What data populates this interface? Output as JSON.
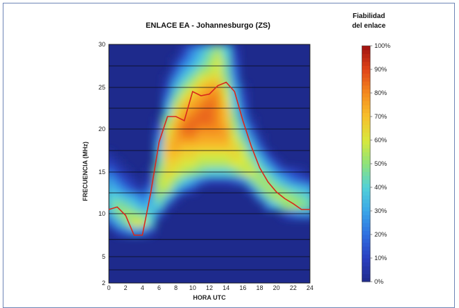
{
  "chart_data": {
    "type": "heatmap",
    "title": "ENLACE EA - Johannesburgo (ZS)",
    "xlabel": "HORA UTC",
    "ylabel": "FRECUENCIA (MHz)",
    "x_ticks": [
      0,
      2,
      4,
      6,
      8,
      10,
      12,
      14,
      16,
      18,
      20,
      22,
      24
    ],
    "y_ticks": [
      2,
      5,
      10,
      15,
      20,
      25,
      30
    ],
    "xlim": [
      0,
      24
    ],
    "ylim": [
      2,
      30
    ],
    "y_scale": "nonlinear",
    "grid": true,
    "colorbar": {
      "title_line1": "Fiabilidad",
      "title_line2": "del enlace",
      "ticks": [
        "0%",
        "10%",
        "20%",
        "30%",
        "40%",
        "50%",
        "60%",
        "70%",
        "80%",
        "90%",
        "100%"
      ],
      "colors": [
        "#1e2a8c",
        "#2a3fc0",
        "#2f6fe0",
        "#3aa6e8",
        "#52d0d8",
        "#8ee27a",
        "#d8e83c",
        "#f7c02c",
        "#f48a1e",
        "#e04418",
        "#a01210"
      ]
    },
    "reliability_grid": {
      "hours": [
        0,
        1,
        2,
        3,
        4,
        5,
        6,
        7,
        8,
        9,
        10,
        11,
        12,
        13,
        14,
        15,
        16,
        17,
        18,
        19,
        20,
        21,
        22,
        23,
        24
      ],
      "frequencies": [
        3,
        4,
        5,
        6,
        7,
        8,
        9,
        10,
        11,
        12,
        13,
        14,
        15,
        16,
        17,
        18,
        19,
        20,
        21,
        22,
        23,
        24,
        25,
        26,
        27,
        28,
        29,
        30
      ],
      "values": [
        [
          0,
          0,
          0,
          0,
          0,
          0,
          0,
          0,
          0,
          0,
          0,
          0,
          0,
          0,
          0,
          0,
          0,
          0,
          0,
          0,
          0,
          0,
          0,
          0,
          0
        ],
        [
          0,
          0,
          0,
          0,
          0,
          0,
          0,
          0,
          0,
          0,
          0,
          0,
          0,
          0,
          0,
          0,
          0,
          0,
          0,
          0,
          0,
          0,
          0,
          0,
          0
        ],
        [
          0,
          0,
          0,
          0,
          0,
          0,
          0,
          0,
          0,
          0,
          0,
          0,
          0,
          0,
          0,
          0,
          0,
          0,
          0,
          0,
          0,
          0,
          0,
          0,
          0
        ],
        [
          0,
          0,
          0,
          0,
          0,
          0,
          0,
          0,
          0,
          0,
          0,
          0,
          0,
          0,
          0,
          0,
          0,
          0,
          0,
          0,
          0,
          0,
          0,
          0,
          0
        ],
        [
          0,
          0,
          0,
          0,
          0,
          0,
          0,
          0,
          0,
          0,
          0,
          0,
          0,
          0,
          0,
          0,
          0,
          0,
          0,
          0,
          0,
          0,
          0,
          0,
          0
        ],
        [
          0,
          10,
          20,
          30,
          25,
          10,
          0,
          0,
          0,
          0,
          0,
          0,
          0,
          0,
          0,
          0,
          0,
          0,
          0,
          0,
          0,
          0,
          0,
          0,
          0
        ],
        [
          15,
          30,
          45,
          60,
          60,
          40,
          0,
          0,
          0,
          0,
          0,
          0,
          0,
          0,
          0,
          0,
          0,
          0,
          0,
          0,
          0,
          0,
          0,
          0,
          0
        ],
        [
          30,
          45,
          55,
          50,
          45,
          40,
          15,
          0,
          0,
          0,
          0,
          0,
          0,
          0,
          0,
          0,
          0,
          0,
          0,
          0,
          0,
          10,
          20,
          25,
          25
        ],
        [
          40,
          50,
          45,
          40,
          30,
          35,
          40,
          10,
          0,
          0,
          0,
          0,
          0,
          0,
          0,
          0,
          0,
          0,
          0,
          25,
          40,
          50,
          55,
          50,
          45
        ],
        [
          40,
          40,
          35,
          30,
          20,
          30,
          50,
          35,
          10,
          0,
          0,
          0,
          0,
          0,
          0,
          0,
          0,
          0,
          25,
          45,
          55,
          55,
          50,
          45,
          40
        ],
        [
          35,
          30,
          20,
          10,
          5,
          20,
          55,
          55,
          35,
          20,
          10,
          0,
          0,
          0,
          0,
          0,
          0,
          20,
          45,
          55,
          50,
          45,
          40,
          35,
          30
        ],
        [
          30,
          20,
          10,
          5,
          0,
          10,
          55,
          60,
          50,
          40,
          30,
          20,
          10,
          10,
          10,
          15,
          25,
          45,
          55,
          50,
          40,
          30,
          20,
          15,
          10
        ],
        [
          20,
          10,
          5,
          0,
          0,
          5,
          50,
          65,
          60,
          55,
          50,
          45,
          40,
          40,
          40,
          45,
          55,
          60,
          50,
          40,
          25,
          15,
          10,
          5,
          0
        ],
        [
          10,
          5,
          0,
          0,
          0,
          0,
          45,
          65,
          65,
          60,
          60,
          55,
          55,
          55,
          55,
          60,
          60,
          55,
          40,
          25,
          10,
          0,
          0,
          0,
          0
        ],
        [
          5,
          0,
          0,
          0,
          0,
          0,
          40,
          70,
          70,
          65,
          65,
          60,
          60,
          60,
          60,
          65,
          60,
          45,
          30,
          10,
          0,
          0,
          0,
          0,
          0
        ],
        [
          0,
          0,
          0,
          0,
          0,
          0,
          35,
          70,
          75,
          70,
          70,
          70,
          70,
          70,
          70,
          65,
          55,
          35,
          15,
          0,
          0,
          0,
          0,
          0,
          0
        ],
        [
          0,
          0,
          0,
          0,
          0,
          0,
          25,
          65,
          75,
          80,
          80,
          75,
          75,
          75,
          75,
          60,
          45,
          25,
          5,
          0,
          0,
          0,
          0,
          0,
          0
        ],
        [
          0,
          0,
          0,
          0,
          0,
          0,
          15,
          60,
          75,
          85,
          85,
          80,
          80,
          80,
          75,
          55,
          35,
          15,
          0,
          0,
          0,
          0,
          0,
          0,
          0
        ],
        [
          0,
          0,
          0,
          0,
          0,
          0,
          5,
          50,
          70,
          80,
          85,
          85,
          85,
          80,
          70,
          50,
          25,
          5,
          0,
          0,
          0,
          0,
          0,
          0,
          0
        ],
        [
          0,
          0,
          0,
          0,
          0,
          0,
          0,
          40,
          65,
          75,
          80,
          85,
          85,
          80,
          70,
          45,
          20,
          0,
          0,
          0,
          0,
          0,
          0,
          0,
          0
        ],
        [
          0,
          0,
          0,
          0,
          0,
          0,
          0,
          30,
          55,
          70,
          75,
          80,
          85,
          80,
          65,
          40,
          15,
          0,
          0,
          0,
          0,
          0,
          0,
          0,
          0
        ],
        [
          0,
          0,
          0,
          0,
          0,
          0,
          0,
          20,
          45,
          60,
          70,
          75,
          80,
          80,
          60,
          35,
          10,
          0,
          0,
          0,
          0,
          0,
          0,
          0,
          0
        ],
        [
          0,
          0,
          0,
          0,
          0,
          0,
          0,
          10,
          35,
          50,
          60,
          70,
          75,
          75,
          55,
          30,
          5,
          0,
          0,
          0,
          0,
          0,
          0,
          0,
          0
        ],
        [
          0,
          0,
          0,
          0,
          0,
          0,
          0,
          5,
          25,
          40,
          50,
          60,
          65,
          65,
          50,
          25,
          0,
          0,
          0,
          0,
          0,
          0,
          0,
          0,
          0
        ],
        [
          0,
          0,
          0,
          0,
          0,
          0,
          0,
          0,
          15,
          30,
          40,
          50,
          55,
          60,
          45,
          20,
          0,
          0,
          0,
          0,
          0,
          0,
          0,
          0,
          0
        ],
        [
          0,
          0,
          0,
          0,
          0,
          0,
          0,
          0,
          5,
          20,
          30,
          40,
          50,
          60,
          45,
          15,
          0,
          0,
          0,
          0,
          0,
          0,
          0,
          0,
          0
        ],
        [
          0,
          0,
          0,
          0,
          0,
          0,
          0,
          0,
          0,
          10,
          25,
          35,
          45,
          55,
          40,
          10,
          0,
          0,
          0,
          0,
          0,
          0,
          0,
          0,
          0
        ],
        [
          0,
          0,
          0,
          0,
          0,
          0,
          0,
          0,
          0,
          5,
          15,
          25,
          35,
          45,
          35,
          5,
          0,
          0,
          0,
          0,
          0,
          0,
          0,
          0,
          0
        ]
      ]
    },
    "series": [
      {
        "type": "line",
        "color": "#d8281c",
        "points": [
          [
            0,
            10.5
          ],
          [
            1,
            10.8
          ],
          [
            2,
            9.8
          ],
          [
            3,
            7.5
          ],
          [
            4,
            7.5
          ],
          [
            5,
            12.5
          ],
          [
            6,
            18.5
          ],
          [
            7,
            21.5
          ],
          [
            8,
            21.5
          ],
          [
            9,
            21.0
          ],
          [
            10,
            24.5
          ],
          [
            11,
            24.0
          ],
          [
            12,
            24.2
          ],
          [
            13,
            25.2
          ],
          [
            14,
            25.6
          ],
          [
            15,
            24.5
          ],
          [
            16,
            21.0
          ],
          [
            17,
            18.0
          ],
          [
            18,
            15.5
          ],
          [
            19,
            13.8
          ],
          [
            20,
            12.6
          ],
          [
            21,
            11.8
          ],
          [
            22,
            11.2
          ],
          [
            23,
            10.5
          ],
          [
            24,
            10.5
          ]
        ]
      }
    ]
  }
}
